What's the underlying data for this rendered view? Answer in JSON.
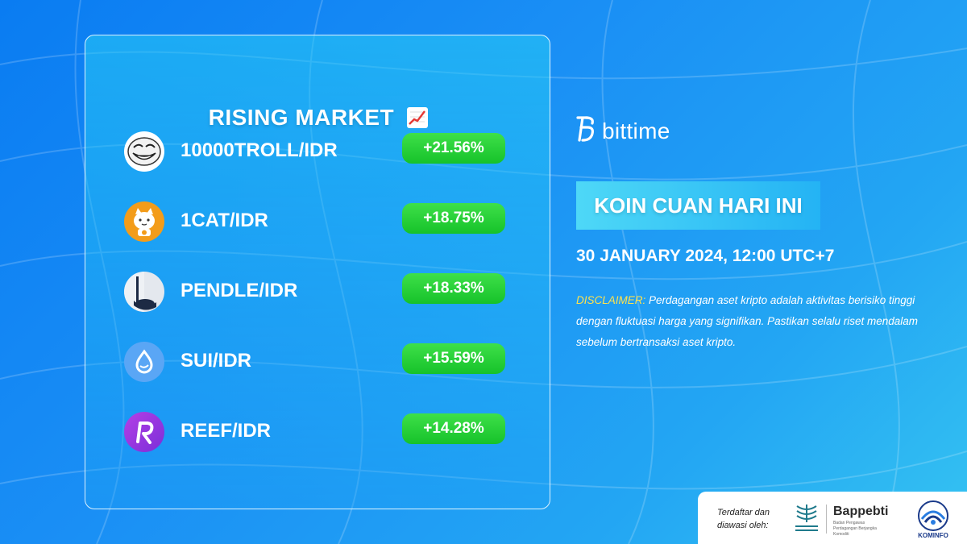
{
  "panel": {
    "title": "RISING MARKET",
    "title_icon": "chart-increasing-icon"
  },
  "coins": [
    {
      "pair": "10000TROLL/IDR",
      "change": "+21.56%",
      "icon": "troll-face-icon"
    },
    {
      "pair": "1CAT/IDR",
      "change": "+18.75%",
      "icon": "cat-icon"
    },
    {
      "pair": "PENDLE/IDR",
      "change": "+18.33%",
      "icon": "pendle-icon"
    },
    {
      "pair": "SUI/IDR",
      "change": "+15.59%",
      "icon": "sui-droplet-icon"
    },
    {
      "pair": "REEF/IDR",
      "change": "+14.28%",
      "icon": "reef-r-icon"
    }
  ],
  "brand": {
    "name": "bittime"
  },
  "headline": "KOIN CUAN HARI INI",
  "date": "30 JANUARY 2024, 12:00 UTC+7",
  "disclaimer": {
    "label": "DISCLAIMER:",
    "text": " Perdagangan aset kripto adalah aktivitas berisiko tinggi dengan fluktuasi harga yang signifikan. Pastikan selalu riset mendalam sebelum bertransaksi aset kripto."
  },
  "footer": {
    "registered_text": "Terdaftar dan diawasi oleh:",
    "bappebti_name": "Bappebti",
    "bappebti_sub": "Badan Pengawas Perdagangan Berjangka Komoditi",
    "kominfo_label": "KOMINFO"
  },
  "colors": {
    "background": "#1a8ff5",
    "change_badge": "#22cc33",
    "disclaimer_label": "#ffe24d",
    "headline_box": "#3cc8f6"
  }
}
